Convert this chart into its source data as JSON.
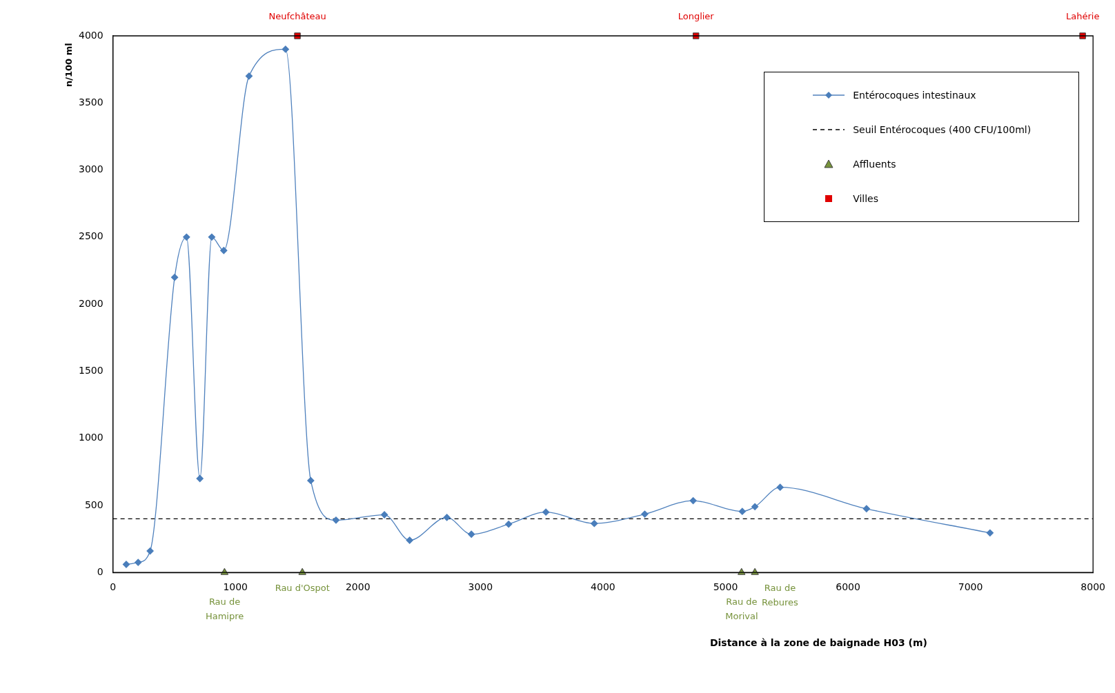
{
  "chart_data": {
    "type": "line",
    "xlabel": "Distance à la zone de baignade H03 (m)",
    "ylabel": "n/100 ml",
    "xlim": [
      0,
      8000
    ],
    "xticks": [
      0,
      1000,
      2000,
      3000,
      4000,
      5000,
      6000,
      7000,
      8000
    ],
    "ylim": [
      0,
      4000
    ],
    "yticks": [
      0,
      500,
      1000,
      1500,
      2000,
      2500,
      3000,
      3500,
      4000
    ],
    "grid": false,
    "legend": "top right",
    "series": [
      {
        "name": "Entérocoques intestinaux",
        "marker": "diamond",
        "color": "#4a7ebb",
        "x": [
          109,
          206,
          304,
          504,
          601,
          710,
          807,
          905,
          1111,
          1409,
          1615,
          1821,
          2216,
          2422,
          2726,
          2926,
          3230,
          3534,
          3929,
          4341,
          4736,
          5137,
          5240,
          5446,
          6151,
          7159
        ],
        "values": [
          60,
          75,
          160,
          2200,
          2500,
          700,
          2500,
          2400,
          3700,
          3900,
          685,
          390,
          430,
          240,
          410,
          285,
          360,
          450,
          365,
          435,
          535,
          455,
          490,
          635,
          475,
          295
        ]
      },
      {
        "name": "Affluents",
        "type": "scatter",
        "marker": "triangle",
        "color": "#77933c",
        "x": [
          911,
          1546,
          5131,
          5240
        ],
        "values": [
          0,
          0,
          0,
          0
        ]
      },
      {
        "name": "Villes",
        "type": "scatter",
        "marker": "square",
        "color": "#e00000",
        "x": [
          1506,
          4759,
          7915
        ],
        "values": [
          4000,
          4000,
          4000
        ]
      }
    ],
    "ref_lines": [
      {
        "axis": "y",
        "value": 400,
        "label": "Seuil Entérocoques (400 CFU/100ml)",
        "color": "#000000",
        "line_style": "dashed"
      }
    ],
    "annotations": [
      {
        "text": "Neufchâteau",
        "x": 1506,
        "y": 4000
      },
      {
        "text": "Longlier",
        "x": 4759,
        "y": 4000
      },
      {
        "text": "Lahérie",
        "x": 7915,
        "y": 4000
      },
      {
        "text": "Rau de\nHamipre",
        "x": 911,
        "y": 0
      },
      {
        "text": "Rau d'Ospot",
        "x": 1546,
        "y": 0
      },
      {
        "text": "Rau de\nMorival",
        "x": 5131,
        "y": 0
      },
      {
        "text": "Rau de\nRebures",
        "x": 5240,
        "y": 0
      }
    ]
  }
}
